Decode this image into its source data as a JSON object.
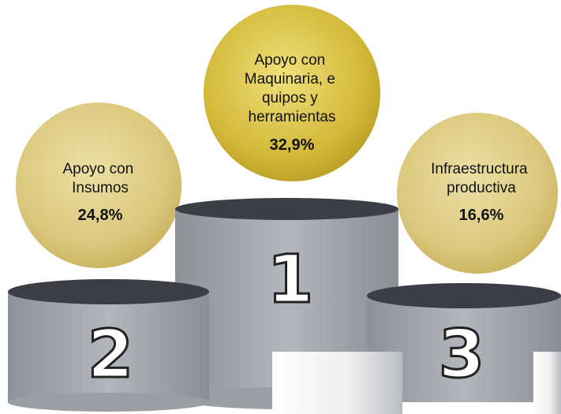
{
  "podium": [
    {
      "rank": "1",
      "label_lines": [
        "Apoyo con",
        "Maquinaria, e",
        "quipos y",
        "herramientas"
      ],
      "value": "32,9%"
    },
    {
      "rank": "2",
      "label_lines": [
        "Apoyo con",
        "Insumos"
      ],
      "value": "24,8%"
    },
    {
      "rank": "3",
      "label_lines": [
        "Infraestructura",
        "productiva"
      ],
      "value": "16,6%"
    }
  ]
}
